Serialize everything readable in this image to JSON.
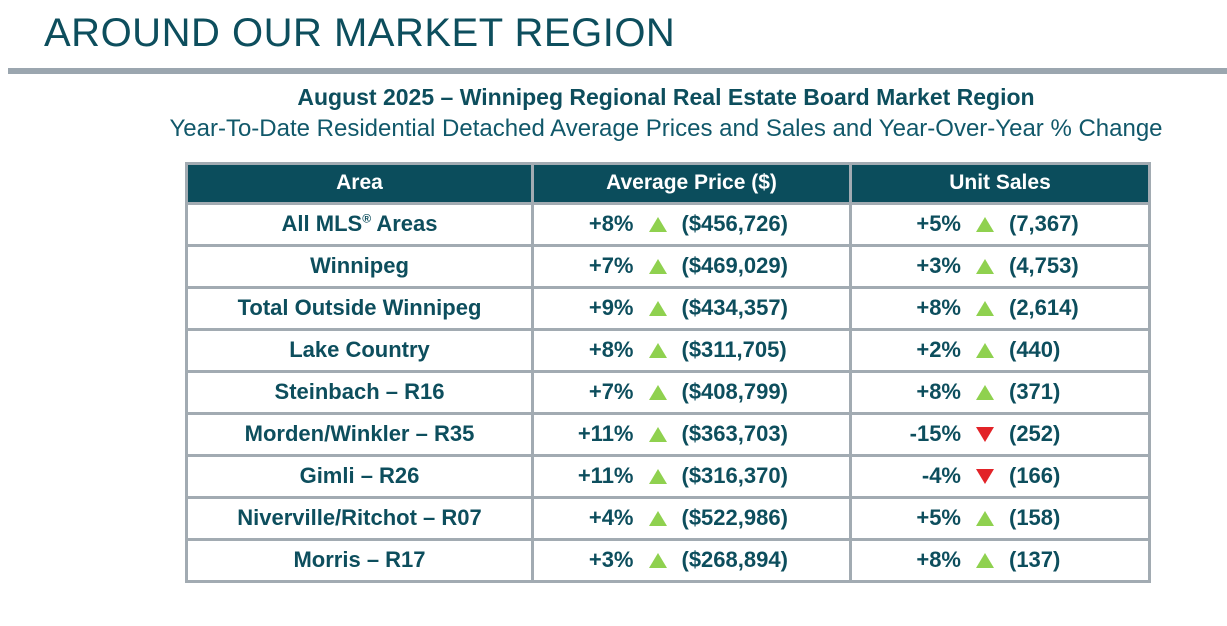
{
  "page": {
    "title": "AROUND OUR MARKET REGION"
  },
  "colors": {
    "teal_text": "#0d4e5d",
    "header_bg": "#0b4d5c",
    "table_border": "#a2abb2",
    "divider_gray": "#9ba6af",
    "up_green": "#8fd14f",
    "down_red": "#e22328"
  },
  "chart_data": {
    "type": "table",
    "title": "August 2025 – Winnipeg Regional Real Estate Board Market Region",
    "subtitle": "Year-To-Date Residential Detached Average Prices and Sales and Year-Over-Year % Change",
    "headers": [
      "Area",
      "Average Price ($)",
      "Unit Sales"
    ],
    "rows": [
      {
        "area": "All MLS® Areas",
        "price_change_pct": "+8%",
        "price_direction": "up",
        "price": "($456,726)",
        "sales_change_pct": "+5%",
        "sales_direction": "up",
        "sales": "(7,367)"
      },
      {
        "area": "Winnipeg",
        "price_change_pct": "+7%",
        "price_direction": "up",
        "price": "($469,029)",
        "sales_change_pct": "+3%",
        "sales_direction": "up",
        "sales": "(4,753)"
      },
      {
        "area": "Total Outside Winnipeg",
        "price_change_pct": "+9%",
        "price_direction": "up",
        "price": "($434,357)",
        "sales_change_pct": "+8%",
        "sales_direction": "up",
        "sales": "(2,614)"
      },
      {
        "area": "Lake Country",
        "price_change_pct": "+8%",
        "price_direction": "up",
        "price": "($311,705)",
        "sales_change_pct": "+2%",
        "sales_direction": "up",
        "sales": "(440)"
      },
      {
        "area": "Steinbach – R16",
        "price_change_pct": "+7%",
        "price_direction": "up",
        "price": "($408,799)",
        "sales_change_pct": "+8%",
        "sales_direction": "up",
        "sales": "(371)"
      },
      {
        "area": "Morden/Winkler – R35",
        "price_change_pct": "+11%",
        "price_direction": "up",
        "price": "($363,703)",
        "sales_change_pct": "-15%",
        "sales_direction": "down",
        "sales": "(252)"
      },
      {
        "area": "Gimli – R26",
        "price_change_pct": "+11%",
        "price_direction": "up",
        "price": "($316,370)",
        "sales_change_pct": "-4%",
        "sales_direction": "down",
        "sales": "(166)"
      },
      {
        "area": "Niverville/Ritchot – R07",
        "price_change_pct": "+4%",
        "price_direction": "up",
        "price": "($522,986)",
        "sales_change_pct": "+5%",
        "sales_direction": "up",
        "sales": "(158)"
      },
      {
        "area": "Morris – R17",
        "price_change_pct": "+3%",
        "price_direction": "up",
        "price": "($268,894)",
        "sales_change_pct": "+8%",
        "sales_direction": "up",
        "sales": "(137)"
      }
    ]
  }
}
